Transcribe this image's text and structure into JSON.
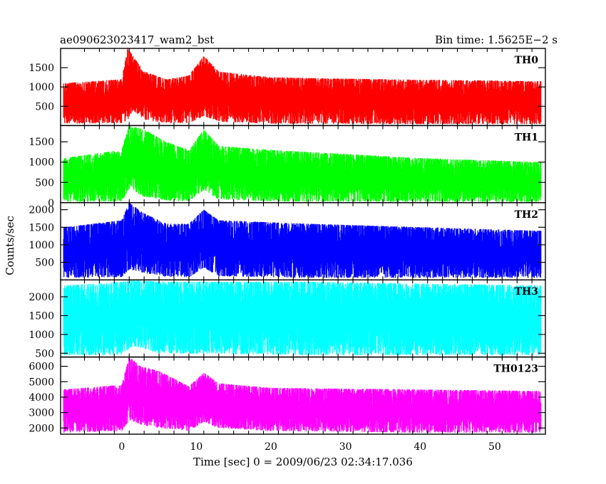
{
  "header": {
    "title": "ae090623023417_wam2_bst",
    "bin_time": "Bin time: 1.5625E−2 s"
  },
  "chart_data": {
    "type": "line",
    "xlabel": "Time [sec] 0 = 2009/06/23 02:34:17.036",
    "ylabel": "Counts/sec",
    "xlim": [
      -8.2,
      56.8
    ],
    "data_x_range": [
      -7.8,
      56.2
    ],
    "x_ticks": [
      0,
      10,
      20,
      30,
      40,
      50
    ],
    "grid": false,
    "panels": [
      {
        "name": "TH0",
        "color": "#ff0000",
        "ylim": [
          0,
          2000
        ],
        "y_ticks": [
          500,
          1000,
          1500
        ],
        "profile": [
          {
            "t": -7.8,
            "low": 50,
            "high": 1100
          },
          {
            "t": 0,
            "low": 60,
            "high": 1200
          },
          {
            "t": 0.8,
            "low": 150,
            "high": 2000
          },
          {
            "t": 1.5,
            "low": 400,
            "high": 1800
          },
          {
            "t": 3,
            "low": 150,
            "high": 1400
          },
          {
            "t": 6,
            "low": 60,
            "high": 1200
          },
          {
            "t": 9,
            "low": 60,
            "high": 1300
          },
          {
            "t": 11,
            "low": 250,
            "high": 1800
          },
          {
            "t": 13,
            "low": 100,
            "high": 1400
          },
          {
            "t": 20,
            "low": 50,
            "high": 1250
          },
          {
            "t": 35,
            "low": 40,
            "high": 1200
          },
          {
            "t": 56.2,
            "low": 40,
            "high": 1150
          }
        ]
      },
      {
        "name": "TH1",
        "color": "#00ff00",
        "ylim": [
          0,
          1900
        ],
        "y_ticks": [
          0,
          500,
          1000,
          1500
        ],
        "profile": [
          {
            "t": -7.8,
            "low": 20,
            "high": 1100
          },
          {
            "t": 0,
            "low": 30,
            "high": 1300
          },
          {
            "t": 1,
            "low": 300,
            "high": 1900
          },
          {
            "t": 3,
            "low": 150,
            "high": 1800
          },
          {
            "t": 6,
            "low": 50,
            "high": 1500
          },
          {
            "t": 9,
            "low": 40,
            "high": 1300
          },
          {
            "t": 11,
            "low": 300,
            "high": 1800
          },
          {
            "t": 13,
            "low": 80,
            "high": 1400
          },
          {
            "t": 20,
            "low": 30,
            "high": 1300
          },
          {
            "t": 40,
            "low": 20,
            "high": 1100
          },
          {
            "t": 56.2,
            "low": 20,
            "high": 1000
          }
        ]
      },
      {
        "name": "TH2",
        "color": "#0000ff",
        "ylim": [
          0,
          2200
        ],
        "y_ticks": [
          500,
          1000,
          1500,
          2000
        ],
        "profile": [
          {
            "t": -7.8,
            "low": 60,
            "high": 1500
          },
          {
            "t": 0,
            "low": 80,
            "high": 1700
          },
          {
            "t": 1,
            "low": 300,
            "high": 2200
          },
          {
            "t": 3,
            "low": 200,
            "high": 1900
          },
          {
            "t": 6,
            "low": 80,
            "high": 1600
          },
          {
            "t": 9,
            "low": 70,
            "high": 1600
          },
          {
            "t": 11,
            "low": 350,
            "high": 2000
          },
          {
            "t": 13,
            "low": 100,
            "high": 1700
          },
          {
            "t": 25,
            "low": 60,
            "high": 1600
          },
          {
            "t": 56.2,
            "low": 60,
            "high": 1400
          }
        ]
      },
      {
        "name": "TH3",
        "color": "#00ffff",
        "ylim": [
          400,
          2450
        ],
        "y_ticks": [
          500,
          1000,
          1500,
          2000
        ],
        "profile": [
          {
            "t": -7.8,
            "low": 450,
            "high": 2300
          },
          {
            "t": 0,
            "low": 450,
            "high": 2400
          },
          {
            "t": 1.5,
            "low": 700,
            "high": 2450
          },
          {
            "t": 5,
            "low": 500,
            "high": 2400
          },
          {
            "t": 25,
            "low": 450,
            "high": 2400
          },
          {
            "t": 56.2,
            "low": 450,
            "high": 2300
          }
        ]
      },
      {
        "name": "TH0123",
        "color": "#ff00ff",
        "ylim": [
          1600,
          6600
        ],
        "y_ticks": [
          2000,
          3000,
          4000,
          5000,
          6000
        ],
        "profile": [
          {
            "t": -7.8,
            "low": 1700,
            "high": 4500
          },
          {
            "t": 0,
            "low": 1800,
            "high": 4800
          },
          {
            "t": 1,
            "low": 2500,
            "high": 6600
          },
          {
            "t": 2.5,
            "low": 2200,
            "high": 6000
          },
          {
            "t": 5,
            "low": 2000,
            "high": 5700
          },
          {
            "t": 9,
            "low": 1800,
            "high": 4700
          },
          {
            "t": 11,
            "low": 2400,
            "high": 5600
          },
          {
            "t": 13,
            "low": 2000,
            "high": 4900
          },
          {
            "t": 20,
            "low": 1800,
            "high": 4600
          },
          {
            "t": 40,
            "low": 1700,
            "high": 4500
          },
          {
            "t": 56.2,
            "low": 1700,
            "high": 4400
          }
        ]
      }
    ]
  }
}
